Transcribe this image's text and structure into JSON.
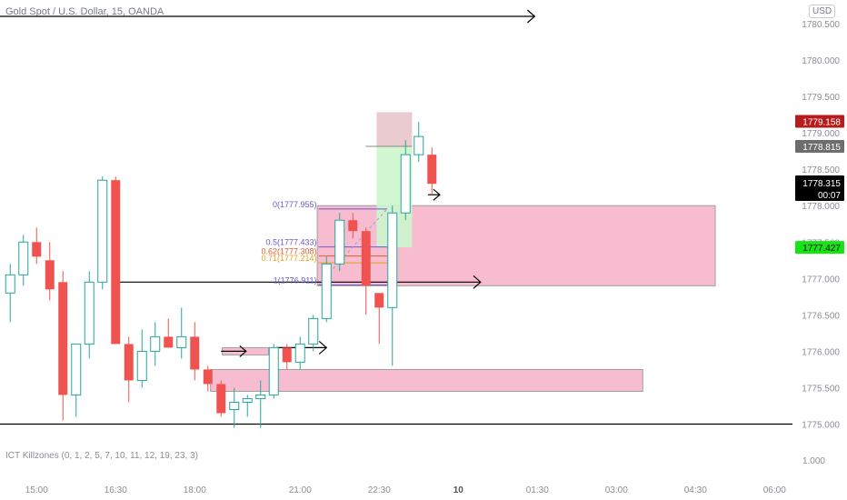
{
  "header": {
    "title": "Gold Spot / U.S. Dollar, 15, OANDA",
    "currency": "USD"
  },
  "indicator": {
    "label": "ICT Killzones (0, 1, 2, 5, 7, 10, 11, 12, 19, 23, 3)"
  },
  "chart_data": {
    "type": "candlestick",
    "x_ticks": [
      {
        "label": "15:00",
        "bar": 2.5,
        "bold": false
      },
      {
        "label": "16:30",
        "bar": 8.5,
        "bold": false
      },
      {
        "label": "18:00",
        "bar": 14.5,
        "bold": false
      },
      {
        "label": "21:00",
        "bar": 22.5,
        "bold": false
      },
      {
        "label": "22:30",
        "bar": 28.5,
        "bold": false
      },
      {
        "label": "10",
        "bar": 34.5,
        "bold": true
      },
      {
        "label": "01:30",
        "bar": 40.5,
        "bold": false
      },
      {
        "label": "03:00",
        "bar": 46.5,
        "bold": false
      },
      {
        "label": "04:30",
        "bar": 52.5,
        "bold": false
      },
      {
        "label": "06:00",
        "bar": 58.5,
        "bold": false
      }
    ],
    "y_ticks": [
      "1780.500",
      "1780.000",
      "1779.500",
      "1779.000",
      "1778.500",
      "1778.000",
      "1777.500",
      "1777.000",
      "1776.500",
      "1776.000",
      "1775.500",
      "1775.000"
    ],
    "y_extra_tick": "1.000",
    "ylim": [
      1774.6,
      1780.8
    ],
    "candles": [
      {
        "o": 1776.8,
        "h": 1777.2,
        "l": 1776.4,
        "c": 1777.05
      },
      {
        "o": 1777.05,
        "h": 1777.6,
        "l": 1776.9,
        "c": 1777.5
      },
      {
        "o": 1777.5,
        "h": 1777.7,
        "l": 1777.2,
        "c": 1777.3
      },
      {
        "o": 1777.25,
        "h": 1777.5,
        "l": 1776.7,
        "c": 1776.85
      },
      {
        "o": 1776.95,
        "h": 1777.1,
        "l": 1775.05,
        "c": 1775.4
      },
      {
        "o": 1775.4,
        "h": 1776.1,
        "l": 1775.1,
        "c": 1776.1
      },
      {
        "o": 1776.1,
        "h": 1777.1,
        "l": 1775.9,
        "c": 1776.95
      },
      {
        "o": 1776.95,
        "h": 1778.4,
        "l": 1776.85,
        "c": 1778.35
      },
      {
        "o": 1778.35,
        "h": 1778.4,
        "l": 1776.1,
        "c": 1776.1
      },
      {
        "o": 1776.1,
        "h": 1776.2,
        "l": 1775.3,
        "c": 1775.6
      },
      {
        "o": 1775.6,
        "h": 1776.3,
        "l": 1775.5,
        "c": 1776.0
      },
      {
        "o": 1776.0,
        "h": 1776.4,
        "l": 1775.8,
        "c": 1776.2
      },
      {
        "o": 1776.2,
        "h": 1776.45,
        "l": 1776.05,
        "c": 1776.05
      },
      {
        "o": 1776.05,
        "h": 1776.6,
        "l": 1775.9,
        "c": 1776.2
      },
      {
        "o": 1776.2,
        "h": 1776.4,
        "l": 1775.6,
        "c": 1775.75
      },
      {
        "o": 1775.75,
        "h": 1775.8,
        "l": 1775.45,
        "c": 1775.55
      },
      {
        "o": 1775.55,
        "h": 1775.6,
        "l": 1775.1,
        "c": 1775.15
      },
      {
        "o": 1775.2,
        "h": 1775.5,
        "l": 1774.95,
        "c": 1775.3
      },
      {
        "o": 1775.3,
        "h": 1775.4,
        "l": 1775.1,
        "c": 1775.35
      },
      {
        "o": 1775.35,
        "h": 1775.6,
        "l": 1774.95,
        "c": 1775.4
      },
      {
        "o": 1775.4,
        "h": 1776.1,
        "l": 1775.35,
        "c": 1776.05
      },
      {
        "o": 1776.05,
        "h": 1776.1,
        "l": 1775.75,
        "c": 1775.85
      },
      {
        "o": 1775.85,
        "h": 1776.2,
        "l": 1775.75,
        "c": 1776.1
      },
      {
        "o": 1776.1,
        "h": 1776.5,
        "l": 1776.0,
        "c": 1776.45
      },
      {
        "o": 1776.45,
        "h": 1777.3,
        "l": 1776.4,
        "c": 1777.2
      },
      {
        "o": 1777.2,
        "h": 1777.9,
        "l": 1777.1,
        "c": 1777.8
      },
      {
        "o": 1777.8,
        "h": 1777.9,
        "l": 1777.55,
        "c": 1777.65
      },
      {
        "o": 1777.65,
        "h": 1777.7,
        "l": 1776.5,
        "c": 1776.9
      },
      {
        "o": 1776.8,
        "h": 1776.8,
        "l": 1776.1,
        "c": 1776.6
      },
      {
        "o": 1776.6,
        "h": 1778.0,
        "l": 1775.8,
        "c": 1777.9
      },
      {
        "o": 1777.9,
        "h": 1778.9,
        "l": 1777.8,
        "c": 1778.7
      },
      {
        "o": 1778.7,
        "h": 1779.15,
        "l": 1778.6,
        "c": 1778.95
      },
      {
        "o": 1778.7,
        "h": 1778.8,
        "l": 1778.15,
        "c": 1778.3
      }
    ],
    "horizontal_lines": [
      1780.6,
      1775.0
    ],
    "ray_lines": [
      {
        "y": 1776.95,
        "from_bar": 8.3,
        "to_bar": 36.2
      },
      {
        "y": 1776.05,
        "from_bar": 20.7,
        "to_bar": 24.5
      }
    ],
    "arrows": [
      {
        "y": 1776.0,
        "from_bar": 16.5,
        "to_bar": 18.4
      },
      {
        "y": 1778.15,
        "from_bar": 32.2,
        "to_bar": 33.1
      }
    ],
    "zones": [
      {
        "top": 1778.0,
        "bottom": 1776.9,
        "from_bar": 23.8,
        "to_bar": 54.0
      },
      {
        "top": 1775.75,
        "bottom": 1775.45,
        "from_bar": 15.7,
        "to_bar": 48.5
      },
      {
        "top": 1776.05,
        "bottom": 1775.95,
        "from_bar": 16.6,
        "to_bar": 20.1
      }
    ],
    "position_tool": {
      "entry": 1778.815,
      "stop": 1779.158,
      "target": 1777.427,
      "from_bar": 28.3,
      "to_bar": 31.0
    },
    "fib": {
      "levels": [
        {
          "label": "0(1777.955)",
          "value": 1777.955,
          "color": "#6a5acd"
        },
        {
          "label": "0.5(1777.433)",
          "value": 1777.433,
          "color": "#6a5acd"
        },
        {
          "label": "0.62(1777.308)",
          "value": 1777.308,
          "color": "#e35d2a"
        },
        {
          "label": "0.71(1777.214)",
          "value": 1777.214,
          "color": "#e3a21a"
        },
        {
          "label": "1(1776.911)",
          "value": 1776.911,
          "color": "#6a5acd"
        }
      ],
      "from_bar": 23.9,
      "to_bar": 29.1
    },
    "price_labels": [
      {
        "text": "1779.158",
        "value": 1779.158,
        "bg": "#b71c1c",
        "fg": "#ffffff"
      },
      {
        "text": "1778.815",
        "value": 1778.815,
        "bg": "#6d6d6d",
        "fg": "#ffffff"
      },
      {
        "text": "1778.315",
        "sub": "00:07",
        "value": 1778.315,
        "bg": "#000000",
        "fg": "#ffffff"
      },
      {
        "text": "1777.427",
        "value": 1777.427,
        "bg": "#14e614",
        "fg": "#000000"
      }
    ],
    "colors": {
      "up": "#26a69a",
      "down": "#ef5350",
      "zone": "#f48fb1",
      "target": "#ccf5cc"
    }
  }
}
